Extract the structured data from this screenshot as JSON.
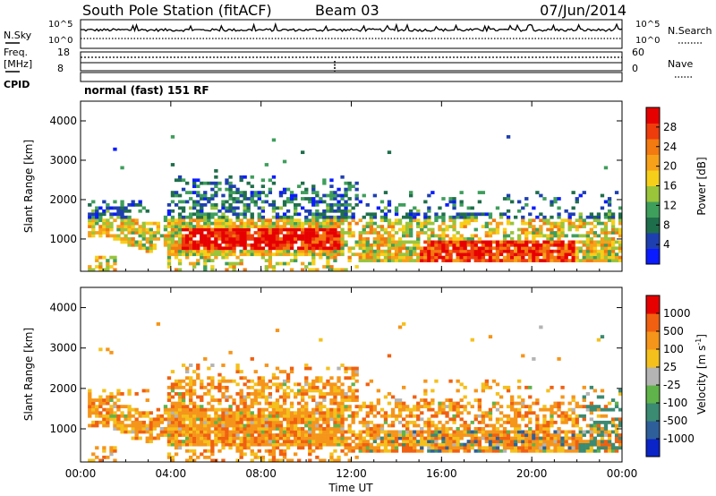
{
  "header": {
    "station": "South Pole Station (fitACF)",
    "beam": "Beam 03",
    "date": "07/Jun/2014"
  },
  "noise_panel": {
    "left_label": "N.Sky",
    "left_ticks": [
      "10^5",
      "10^0"
    ],
    "right_label": "N.Search",
    "right_ticks": [
      "10^5",
      "10^0"
    ]
  },
  "freq_panel": {
    "left_label_1": "Freq.",
    "left_label_2": "[MHz]",
    "left_ticks": [
      "18",
      "8"
    ],
    "right_label": "Nave",
    "right_ticks": [
      "60",
      "0"
    ]
  },
  "cpid_panel": {
    "label": "CPID",
    "text": "normal (fast) 151 RF"
  },
  "chart_data": [
    {
      "type": "heatmap",
      "title": "",
      "xlabel": "Time UT",
      "ylabel": "Slant Range [km]",
      "xlim": [
        0,
        24
      ],
      "ylim": [
        180,
        4500
      ],
      "x_ticks": [
        "00:00",
        "04:00",
        "08:00",
        "12:00",
        "16:00",
        "20:00",
        "00:00"
      ],
      "y_ticks": [
        "1000",
        "2000",
        "3000",
        "4000"
      ],
      "colorbar": {
        "label": "Power [dB]",
        "ticks": [
          "28",
          "24",
          "20",
          "16",
          "12",
          "8",
          "4"
        ],
        "range": [
          0,
          32
        ],
        "colors": [
          "#0a1cff",
          "#1e3fb0",
          "#1f6e4b",
          "#3e9e5b",
          "#9ac43a",
          "#f6cf1a",
          "#f7a11a",
          "#f27a10",
          "#ee3c0c",
          "#e60000"
        ]
      }
    },
    {
      "type": "heatmap",
      "title": "",
      "xlabel": "Time UT",
      "ylabel": "Slant Range [km]",
      "xlim": [
        0,
        24
      ],
      "ylim": [
        180,
        4500
      ],
      "x_ticks": [
        "00:00",
        "04:00",
        "08:00",
        "12:00",
        "16:00",
        "20:00",
        "00:00"
      ],
      "y_ticks": [
        "1000",
        "2000",
        "3000",
        "4000"
      ],
      "colorbar": {
        "label": "Velocity [m s",
        "label_sup": "-1",
        "label_end": "]",
        "ticks": [
          "1000",
          "500",
          "100",
          "25",
          "-25",
          "-100",
          "-500",
          "-1000"
        ],
        "colors": [
          "#0a24c8",
          "#2e5f9a",
          "#3b8a72",
          "#5fb34a",
          "#b4b4b4",
          "#f4c01c",
          "#f5951a",
          "#f06010",
          "#e60000"
        ]
      }
    }
  ]
}
